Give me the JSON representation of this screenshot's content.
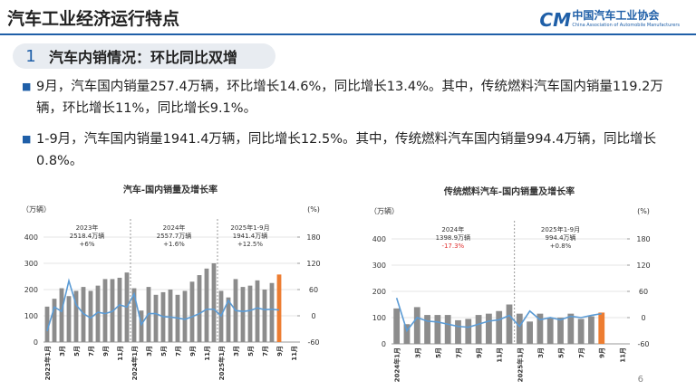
{
  "header": {
    "title": "汽车工业经济运行特点",
    "logo_cn": "中国汽车工业协会",
    "logo_en": "China Association of Automobile Manufacturers"
  },
  "section": {
    "number": "1",
    "title": "汽车内销情况：环比同比双增"
  },
  "bullets": [
    "9月，汽车国内销量257.4万辆，环比增长14.6%，同比增长13.4%。其中，传统燃料汽车国内销量119.2万辆，环比增长11%，同比增长9.1%。",
    "1-9月，汽车国内销量1941.4万辆，同比增长12.5%。其中，传统燃料汽车国内销量994.4万辆，同比增长0.8%。"
  ],
  "page_number": "6",
  "chart_data": [
    {
      "type": "bar",
      "title": "汽车-国内销量及增长率",
      "y_label": "（万辆）",
      "y2_label": "(%)",
      "categories": [
        "2023年1月",
        null,
        "3月",
        null,
        "5月",
        null,
        "7月",
        null,
        "9月",
        null,
        "11月",
        null,
        "2024年1月",
        null,
        "3月",
        null,
        "5月",
        null,
        "7月",
        null,
        "9月",
        null,
        "11月",
        null,
        "2025年1月",
        null,
        "3月",
        null,
        "5月",
        null,
        "7月",
        null,
        "9月",
        null,
        "11月"
      ],
      "series": [
        {
          "type": "bar",
          "color": "#8c8c8c",
          "highlight_color": "#ed7d31",
          "values": [
            135,
            165,
            205,
            175,
            195,
            210,
            195,
            215,
            240,
            240,
            245,
            265,
            205,
            120,
            210,
            180,
            190,
            200,
            180,
            195,
            230,
            255,
            280,
            300,
            195,
            170,
            240,
            210,
            215,
            235,
            200,
            225,
            257.4,
            null,
            null
          ]
        },
        {
          "type": "line",
          "axis": "y2",
          "color": "#5b9bd5",
          "values": [
            -35,
            20,
            10,
            80,
            25,
            5,
            -5,
            8,
            5,
            10,
            25,
            20,
            50,
            -20,
            5,
            5,
            -2,
            -3,
            -5,
            -8,
            -2,
            5,
            15,
            15,
            0,
            35,
            12,
            10,
            12,
            18,
            14,
            15,
            13.4,
            null,
            null
          ]
        }
      ],
      "annotations": [
        {
          "title": "2023年",
          "total": "2518.4万辆",
          "growth": "+6%",
          "color": "#333333"
        },
        {
          "title": "2024年",
          "total": "2557.7万辆",
          "growth": "+1.6%",
          "color": "#333333"
        },
        {
          "title": "2025年1-9月",
          "total": "1941.4万辆",
          "growth": "+12.5%",
          "color": "#333333"
        }
      ],
      "ylim": [
        0,
        400
      ],
      "yticks": [
        0,
        100,
        200,
        300,
        400
      ],
      "y2lim": [
        -60,
        180
      ],
      "y2ticks": [
        -60,
        0,
        60,
        120,
        180
      ],
      "grid": true
    },
    {
      "type": "bar",
      "title": "传统燃料汽车-国内销量及增长率",
      "y_label": "（万辆）",
      "y2_label": "(%)",
      "categories": [
        "2024年1月",
        null,
        "3月",
        null,
        "5月",
        null,
        "7月",
        null,
        "9月",
        null,
        "11月",
        null,
        "2025年1月",
        null,
        "3月",
        null,
        "5月",
        null,
        "7月",
        null,
        "9月",
        null,
        "11月"
      ],
      "series": [
        {
          "type": "bar",
          "color": "#8c8c8c",
          "highlight_color": "#ed7d31",
          "values": [
            135,
            75,
            140,
            110,
            110,
            110,
            90,
            95,
            110,
            115,
            125,
            150,
            115,
            85,
            115,
            100,
            100,
            115,
            95,
            105,
            119.2,
            null,
            null
          ]
        },
        {
          "type": "line",
          "axis": "y2",
          "color": "#5b9bd5",
          "values": [
            45,
            -30,
            0,
            -8,
            -10,
            -15,
            -20,
            -22,
            -15,
            -8,
            -5,
            5,
            -20,
            15,
            -5,
            0,
            -5,
            3,
            0,
            5,
            9.1,
            null,
            null
          ]
        }
      ],
      "annotations": [
        {
          "title": "2024年",
          "total": "1398.9万辆",
          "growth": "-17.3%",
          "color": "#e03030"
        },
        {
          "title": "2025年1-9月",
          "total": "994.4万辆",
          "growth": "+0.8%",
          "color": "#333333"
        }
      ],
      "ylim": [
        0,
        400
      ],
      "yticks": [
        0,
        100,
        200,
        300,
        400
      ],
      "y2lim": [
        -60,
        180
      ],
      "y2ticks": [
        -60,
        0,
        60,
        120,
        180
      ],
      "grid": true
    }
  ]
}
